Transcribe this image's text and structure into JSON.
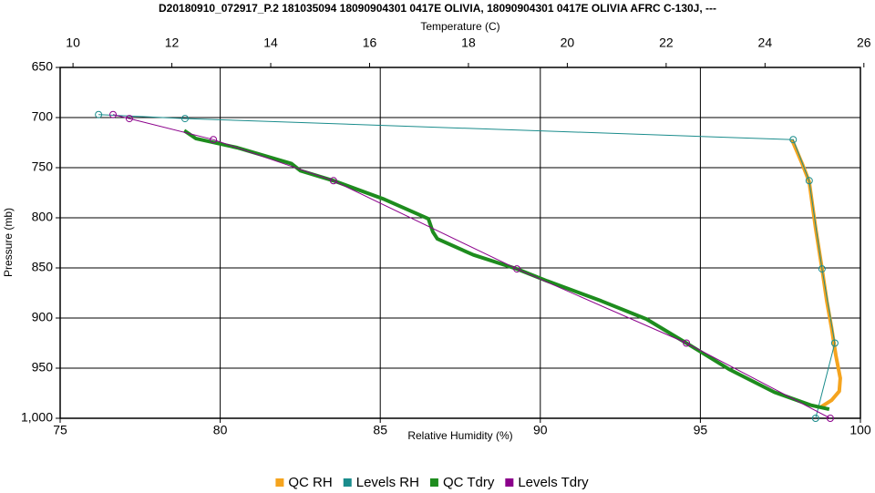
{
  "chart_data": {
    "type": "line",
    "title": "D20180910_072917_P.2 181035094 18090904301 0417E OLIVIA, 18090904301 0417E OLIVIA AFRC C-130J, ---",
    "x_label": "Relative Humidity (%)",
    "x2_label": "Temperature (C)",
    "y_label": "Pressure (mb)",
    "xlim": [
      75,
      100
    ],
    "xticks": [
      75,
      80,
      85,
      90,
      95,
      100
    ],
    "x2lim": [
      9.74,
      25.93
    ],
    "x2ticks": [
      10,
      12,
      14,
      16,
      18,
      20,
      22,
      24,
      26
    ],
    "ylim": [
      650,
      1000
    ],
    "y_reversed": true,
    "yticks": [
      650,
      700,
      750,
      800,
      850,
      900,
      950,
      {
        "value": 1000,
        "label": "1,000"
      }
    ],
    "grid": true,
    "legend": "bottom",
    "series": [
      {
        "name": "QC RH",
        "color": "#f5a41e",
        "width": 4,
        "markers": false,
        "x": [
          97.86,
          98.18,
          98.4,
          98.6,
          98.8,
          98.95,
          99.1,
          99.23,
          99.37,
          99.34,
          99.1,
          98.75
        ],
        "values": [
          722,
          746,
          764,
          810,
          851,
          883,
          910,
          937,
          960,
          973,
          982,
          989
        ]
      },
      {
        "name": "Levels RH",
        "color": "#1a8c8c",
        "width": 1,
        "markers": true,
        "x": [
          76.2,
          78.9,
          97.9,
          98.4,
          98.8,
          99.2,
          98.6
        ],
        "values": [
          697,
          701,
          722,
          763,
          851,
          925,
          1000
        ]
      },
      {
        "name": "QC Tdry",
        "color": "#1e8c1e",
        "width": 4,
        "markers": false,
        "axis": "x2",
        "x": [
          12.25,
          12.49,
          13.32,
          14.42,
          14.6,
          15.27,
          16.27,
          17.19,
          17.28,
          17.37,
          18.1,
          18.98,
          19.59,
          20.69,
          21.6,
          22.41,
          23.27,
          24.19,
          24.93,
          25.3
        ],
        "values": [
          713,
          721,
          730,
          746,
          753,
          763,
          781,
          801,
          814,
          821,
          837,
          851,
          863,
          883,
          901,
          925,
          951,
          974,
          987,
          991
        ]
      },
      {
        "name": "Levels Tdry",
        "color": "#8b008b",
        "width": 1,
        "markers": true,
        "axis": "x2",
        "x": [
          10.81,
          11.14,
          12.84,
          15.27,
          18.98,
          22.41,
          25.32
        ],
        "values": [
          697,
          701,
          722,
          763,
          851,
          925,
          1000
        ]
      }
    ]
  }
}
